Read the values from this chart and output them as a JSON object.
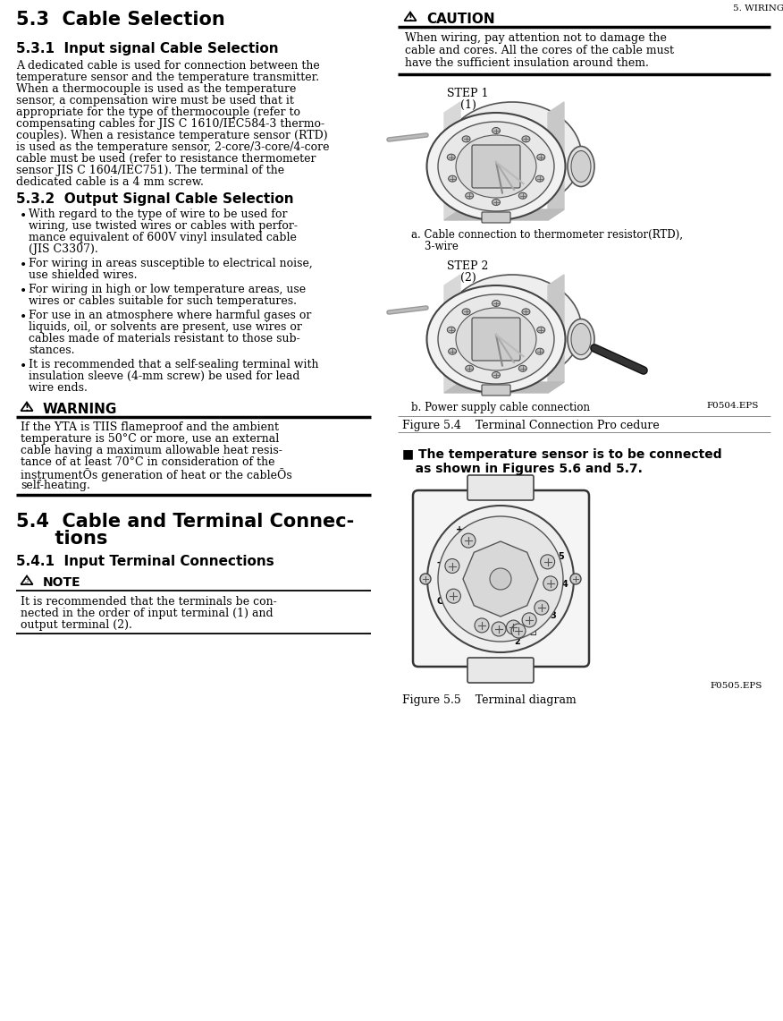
{
  "page_bg": "#ffffff",
  "text_color": "#000000",
  "title_h1": "5.3  Cable Selection",
  "title_h2_1": "5.3.1  Input signal Cable Selection",
  "title_h2_2": "5.3.2  Output Signal Cable Selection",
  "warning_title": "WARNING",
  "title_h1_2_line1": "5.4  Cable and Terminal Connec-",
  "title_h1_2_line2": "      tions",
  "title_h2_3": "5.4.1  Input Terminal Connections",
  "note_title": "NOTE",
  "caution_title": "CAUTION",
  "step1_label": "STEP 1",
  "step1_sub": "  (1)",
  "step2_label": "STEP 2",
  "step2_sub": "  (2)",
  "fig4a_caption_l1": "a. Cable connection to thermometer resistor(RTD),",
  "fig4a_caption_l2": "    3-wire",
  "fig4b_caption": "b. Power supply cable connection",
  "fig4b_tag": "F0504.EPS",
  "fig4_title": "Figure 5.4    Terminal Connection Pro cedure",
  "fig5_note_l1": "■ The temperature sensor is to be connected",
  "fig5_note_l2": "   as shown in Figures 5.6 and 5.7.",
  "fig5_tag": "F0505.EPS",
  "fig5_title": "Figure 5.5    Terminal diagram",
  "header_right": "5. WIRING",
  "p1_lines": [
    "A dedicated cable is used for connection between the",
    "temperature sensor and the temperature transmitter.",
    "When a thermocouple is used as the temperature",
    "sensor, a compensation wire must be used that it",
    "appropriate for the type of thermocouple (refer to",
    "compensating cables for JIS C 1610/IEC584-3 thermo-",
    "couples). When a resistance temperature sensor (RTD)",
    "is used as the temperature sensor, 2-core/3-core/4-core",
    "cable must be used (refer to resistance thermometer",
    "sensor JIS C 1604/IEC751). The terminal of the",
    "dedicated cable is a 4 mm screw."
  ],
  "bullet_items": [
    [
      "With regard to the type of wire to be used for",
      "wiring, use twisted wires or cables with perfor-",
      "mance equivalent of 600V vinyl insulated cable",
      "(JIS C3307)."
    ],
    [
      "For wiring in areas susceptible to electrical noise,",
      "use shielded wires."
    ],
    [
      "For wiring in high or low temperature areas, use",
      "wires or cables suitable for such temperatures."
    ],
    [
      "For use in an atmosphere where harmful gases or",
      "liquids, oil, or solvents are present, use wires or",
      "cables made of materials resistant to those sub-",
      "stances."
    ],
    [
      "It is recommended that a self-sealing terminal with",
      "insulation sleeve (4-mm screw) be used for lead",
      "wire ends."
    ]
  ],
  "warn_lines": [
    "If the YTA is TIIS flameproof and the ambient",
    "temperature is 50°C or more, use an external",
    "cable having a maximum allowable heat resis-",
    "tance of at least 70°C in consideration of the",
    "instrumentÕs generation of heat or the cableÕs",
    "self-heating."
  ],
  "caution_lines": [
    "When wiring, pay attention not to damage the",
    "cable and cores. All the cores of the cable must",
    "have the sufficient insulation around them."
  ],
  "note_lines": [
    "It is recommended that the terminals be con-",
    "nected in the order of input terminal (1) and",
    "output terminal (2)."
  ]
}
